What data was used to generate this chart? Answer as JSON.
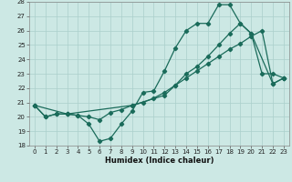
{
  "xlabel": "Humidex (Indice chaleur)",
  "xlim": [
    -0.5,
    23.5
  ],
  "ylim": [
    18,
    28
  ],
  "yticks": [
    18,
    19,
    20,
    21,
    22,
    23,
    24,
    25,
    26,
    27,
    28
  ],
  "xticks": [
    0,
    1,
    2,
    3,
    4,
    5,
    6,
    7,
    8,
    9,
    10,
    11,
    12,
    13,
    14,
    15,
    16,
    17,
    18,
    19,
    20,
    21,
    22,
    23
  ],
  "bg_color": "#cce8e4",
  "grid_color": "#aacfcb",
  "line_color": "#1a6b5a",
  "line1_x": [
    0,
    1,
    2,
    3,
    4,
    5,
    6,
    7,
    8,
    9,
    10,
    11,
    12,
    13,
    14,
    15,
    16,
    17,
    18,
    19,
    20,
    21,
    22,
    23
  ],
  "line1_y": [
    20.8,
    20.0,
    20.2,
    20.2,
    20.1,
    19.5,
    18.3,
    18.5,
    19.5,
    20.4,
    21.7,
    21.8,
    23.2,
    24.8,
    26.0,
    26.5,
    26.5,
    27.8,
    27.8,
    26.5,
    25.8,
    23.0,
    23.0,
    22.7
  ],
  "line2_x": [
    0,
    1,
    2,
    3,
    4,
    5,
    6,
    7,
    8,
    9,
    10,
    11,
    12,
    13,
    14,
    15,
    16,
    17,
    18,
    19,
    20,
    21,
    22,
    23
  ],
  "line2_y": [
    20.8,
    20.0,
    20.2,
    20.2,
    20.1,
    20.0,
    19.8,
    20.3,
    20.5,
    20.8,
    21.0,
    21.3,
    21.7,
    22.2,
    22.7,
    23.2,
    23.7,
    24.2,
    24.7,
    25.1,
    25.6,
    26.0,
    22.3,
    22.7
  ],
  "line3_x": [
    0,
    3,
    9,
    12,
    13,
    14,
    15,
    16,
    17,
    18,
    19,
    20,
    22,
    23
  ],
  "line3_y": [
    20.8,
    20.2,
    20.8,
    21.5,
    22.2,
    23.0,
    23.5,
    24.2,
    25.0,
    25.8,
    26.5,
    25.8,
    22.3,
    22.7
  ]
}
